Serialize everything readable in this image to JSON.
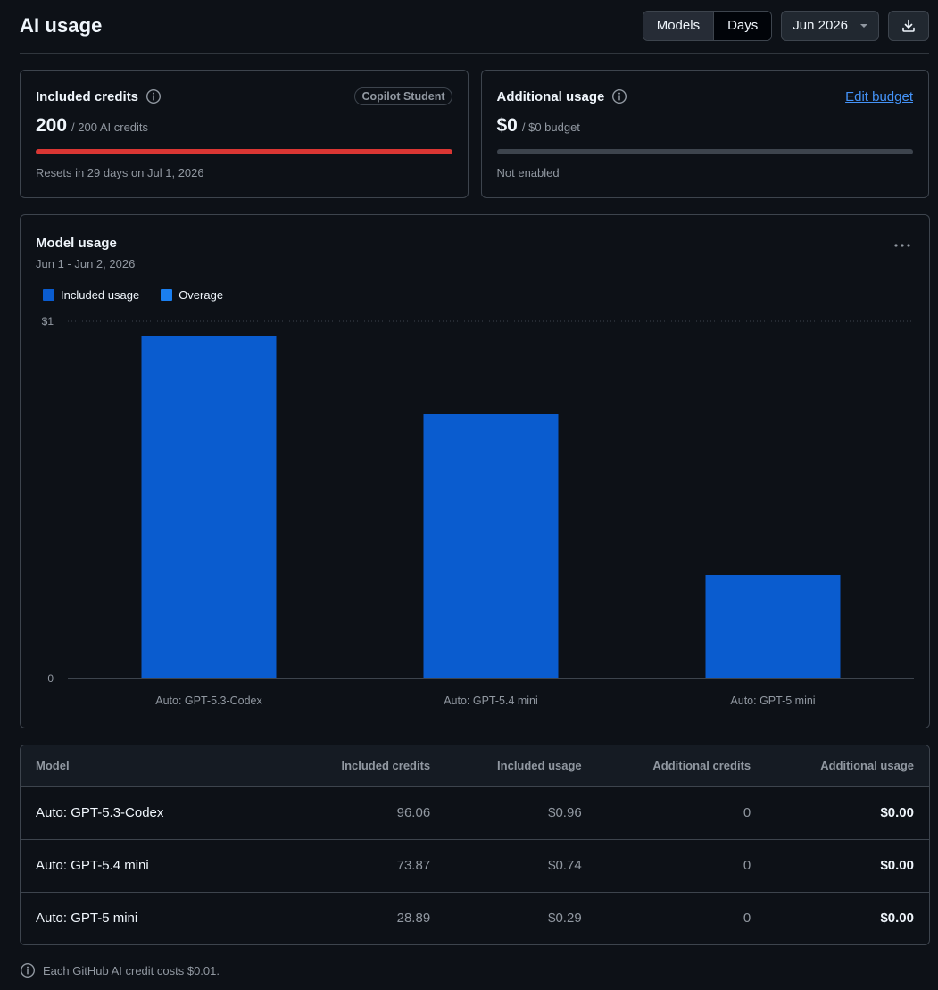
{
  "header": {
    "title": "AI usage",
    "view_toggle": {
      "models_label": "Models",
      "days_label": "Days",
      "selected": "Models"
    },
    "month_select": "Jun 2026",
    "download_icon": "download-icon"
  },
  "included_credits": {
    "title": "Included credits",
    "badge": "Copilot Student",
    "amount": "200",
    "amount_suffix": "/ 200 AI credits",
    "progress_percent": 100,
    "progress_color": "#da3633",
    "footer": "Resets in 29 days on Jul 1, 2026"
  },
  "additional_usage": {
    "title": "Additional usage",
    "link": "Edit budget",
    "amount": "$0",
    "amount_suffix": "/ $0 budget",
    "progress_percent": 0,
    "footer": "Not enabled"
  },
  "model_usage": {
    "title": "Model usage",
    "date_range": "Jun 1 - Jun 2, 2026",
    "more_icon": "kebab-horizontal-icon"
  },
  "chart_data": {
    "type": "bar",
    "categories": [
      "Auto: GPT-5.3-Codex",
      "Auto: GPT-5.4 mini",
      "Auto: GPT-5 mini"
    ],
    "series": [
      {
        "name": "Included usage",
        "values": [
          0.96,
          0.74,
          0.29
        ],
        "color": "#0a5ccf"
      },
      {
        "name": "Overage",
        "values": [
          0,
          0,
          0
        ],
        "color": "#1a7ff0"
      }
    ],
    "y_tick_labels": [
      "0",
      "$1"
    ],
    "ylim": [
      0,
      1
    ],
    "stacked": true,
    "legend_position": "top-left"
  },
  "table": {
    "headers": [
      "Model",
      "Included credits",
      "Included usage",
      "Additional credits",
      "Additional usage"
    ],
    "rows": [
      {
        "model": "Auto: GPT-5.3-Codex",
        "included_credits": "96.06",
        "included_usage": "$0.96",
        "additional_credits": "0",
        "additional_usage": "$0.00"
      },
      {
        "model": "Auto: GPT-5.4 mini",
        "included_credits": "73.87",
        "included_usage": "$0.74",
        "additional_credits": "0",
        "additional_usage": "$0.00"
      },
      {
        "model": "Auto: GPT-5 mini",
        "included_credits": "28.89",
        "included_usage": "$0.29",
        "additional_credits": "0",
        "additional_usage": "$0.00"
      }
    ]
  },
  "footnote": "Each GitHub AI credit costs $0.01."
}
